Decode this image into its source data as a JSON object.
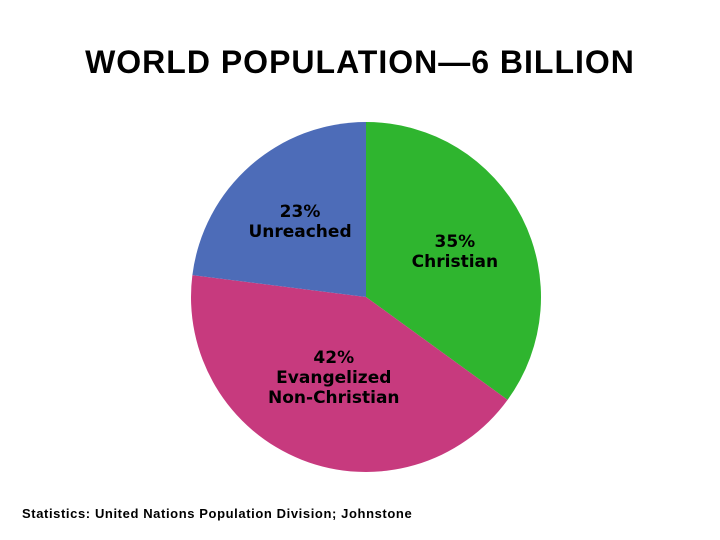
{
  "chart_data": {
    "type": "pie",
    "title": "WORLD POPULATION—6 BILLION",
    "categories": [
      "Christian",
      "Evangelized Non-Christian",
      "Unreached"
    ],
    "values": [
      35,
      42,
      23
    ],
    "value_labels": [
      "35%",
      "42%",
      "23%"
    ],
    "colors": [
      "#2fb52f",
      "#c73a7e",
      "#4d6cb8"
    ],
    "note": "Statistics: United Nations Population Division; Johnstone"
  }
}
